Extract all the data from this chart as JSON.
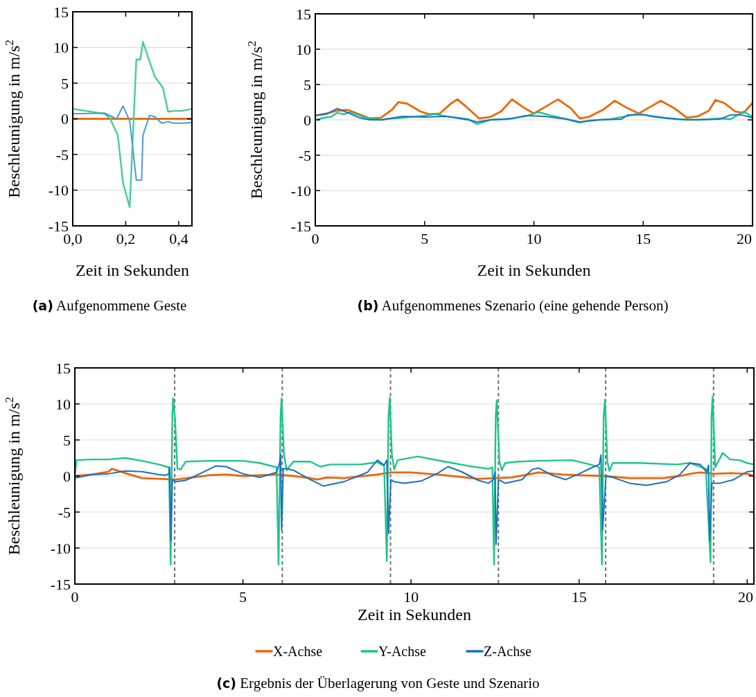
{
  "chart_data": [
    {
      "type": "line",
      "title": "(a) Aufgenommene Geste",
      "xlabel": "Zeit in Sekunden",
      "ylabel": "Beschleunigung in m/s$^{2}$",
      "xlim": [
        0,
        0.45
      ],
      "xticks": [
        {
          "value": 0,
          "label": "0,0"
        },
        {
          "value": 0.2,
          "label": "0,2"
        },
        {
          "value": 0.4,
          "label": "0,4"
        }
      ],
      "ylim": [
        -15,
        15
      ],
      "yticks": [
        -15,
        -10,
        -5,
        0,
        5,
        10,
        15
      ],
      "grid": "y",
      "legend": false,
      "line_style": "solid",
      "marker": "none",
      "series": [
        {
          "color": "#e8700a",
          "x": [
            0,
            0.45
          ],
          "values": [
            0,
            0
          ]
        },
        {
          "color": "#45cc9c",
          "x": [
            0,
            0.12,
            0.14,
            0.17,
            0.19,
            0.215,
            0.24,
            0.255,
            0.265,
            0.29,
            0.31,
            0.34,
            0.36,
            0.38,
            0.41,
            0.45
          ],
          "values": [
            1.4,
            0.7,
            0.1,
            -2.3,
            -9,
            -12.4,
            8.3,
            8.3,
            10.8,
            8,
            5.9,
            4.4,
            1,
            1.1,
            1.1,
            1.4
          ]
        },
        {
          "color": "#4b9ad2",
          "x": [
            0,
            0.12,
            0.165,
            0.19,
            0.215,
            0.24,
            0.26,
            0.265,
            0.29,
            0.31,
            0.335,
            0.36,
            0.38,
            0.42,
            0.45
          ],
          "values": [
            0.7,
            0.8,
            0,
            1.8,
            -0.3,
            -8.6,
            -8.6,
            -2.3,
            0.5,
            0.3,
            -0.6,
            -0.4,
            -0.6,
            -0.6,
            -0.5
          ]
        }
      ]
    },
    {
      "type": "line",
      "title": "(b) Aufgenommenes Szenario (eine gehende Person)",
      "xlabel": "Zeit in Sekunden",
      "ylabel": "Beschleunigung in m/s$^{2}$",
      "xlim": [
        0,
        20
      ],
      "xticks": [
        0,
        5,
        10,
        15,
        20
      ],
      "ylim": [
        -15,
        15
      ],
      "yticks": [
        -15,
        -10,
        -5,
        0,
        5,
        10,
        15
      ],
      "grid": "y",
      "legend": false,
      "line_style": "solid",
      "marker": "none",
      "series": [
        {
          "color": "#ec6608",
          "x": [
            0,
            0.5,
            1,
            1.5,
            2,
            2.5,
            3,
            3.5,
            3.8,
            4.2,
            4.8,
            5.2,
            5.7,
            6.2,
            6.5,
            7,
            7.5,
            8,
            8.5,
            9,
            9.5,
            10,
            10.5,
            11.1,
            11.7,
            12.1,
            12.5,
            13.2,
            13.7,
            14.2,
            14.8,
            15.3,
            15.8,
            16.4,
            17,
            17.5,
            18,
            18.3,
            18.7,
            19.2,
            19.6,
            20
          ],
          "values": [
            0.6,
            0.9,
            1.3,
            1.4,
            0.8,
            0.2,
            0.3,
            1.4,
            2.5,
            2.3,
            1.2,
            0.8,
            0.9,
            2.3,
            2.9,
            1.6,
            0.2,
            0.4,
            1.2,
            2.9,
            1.8,
            0.9,
            1.8,
            2.9,
            1.6,
            0.2,
            0.4,
            1.5,
            2.7,
            1.8,
            0.9,
            1.8,
            2.7,
            1.7,
            0.3,
            0.5,
            1.3,
            2.8,
            2.4,
            1.2,
            1,
            2.4
          ]
        },
        {
          "color": "#1dc48c",
          "x": [
            0,
            0.4,
            0.7,
            1,
            1.3,
            1.6,
            2.2,
            3,
            3.5,
            4,
            5,
            5.5,
            6,
            7,
            7.4,
            8,
            8.8,
            9.6,
            10.2,
            10.8,
            11.5,
            12.1,
            12.5,
            13.5,
            14.2,
            14.8,
            15.5,
            16.5,
            17.5,
            18.5,
            19,
            19.6,
            20
          ],
          "values": [
            0,
            0.3,
            0.4,
            1,
            0.8,
            1.1,
            0.4,
            0,
            0.2,
            0.3,
            0.6,
            0.8,
            0.5,
            0.1,
            -0.6,
            0,
            0.1,
            0.5,
            1.1,
            0.6,
            0.1,
            -0.4,
            -0.1,
            0.1,
            0.5,
            0.9,
            0.4,
            0.1,
            0,
            0.2,
            0.1,
            1.2,
            0.4
          ]
        },
        {
          "color": "#1a73c8",
          "x": [
            0,
            0.5,
            1,
            1.5,
            2,
            2.5,
            3,
            4,
            5,
            6,
            7,
            7.4,
            8,
            9,
            9.6,
            10.5,
            11.5,
            12.1,
            13,
            14,
            14.3,
            15,
            16,
            17,
            18.5,
            19,
            19.5,
            20
          ],
          "values": [
            0.6,
            0.8,
            1.6,
            1,
            0.3,
            0,
            0,
            0.5,
            0.4,
            0.5,
            0,
            -0.3,
            0,
            0.2,
            0.6,
            0.5,
            0.1,
            -0.3,
            0,
            0.1,
            0.7,
            0.7,
            0.3,
            0,
            0.1,
            0.7,
            0.7,
            0.3
          ]
        }
      ]
    },
    {
      "type": "line",
      "title": "(c) Ergebnis der Überlagerung von Geste und Szenario",
      "xlabel": "Zeit in Sekunden",
      "ylabel": "Beschleunigung in m/s$^{2}$",
      "xlim": [
        0,
        20.2
      ],
      "xticks": [
        0,
        5,
        10,
        15,
        20
      ],
      "ylim": [
        -15,
        15
      ],
      "yticks": [
        -15,
        -10,
        -5,
        0,
        5,
        10,
        15
      ],
      "grid": "y",
      "legend": "bottom",
      "line_style": "solid",
      "marker": "none",
      "ref_lines": [
        {
          "axis": "x",
          "value": 2.97,
          "color": "#707070",
          "line_style": "dashed"
        },
        {
          "axis": "x",
          "value": 6.17,
          "color": "#707070",
          "line_style": "dashed"
        },
        {
          "axis": "x",
          "value": 9.39,
          "color": "#707070",
          "line_style": "dashed"
        },
        {
          "axis": "x",
          "value": 12.6,
          "color": "#707070",
          "line_style": "dashed"
        },
        {
          "axis": "x",
          "value": 15.79,
          "color": "#707070",
          "line_style": "dashed"
        },
        {
          "axis": "x",
          "value": 19,
          "color": "#707070",
          "line_style": "dashed"
        }
      ],
      "series": [
        {
          "name": "X-Achse",
          "color": "#ec6608",
          "x": [
            0,
            0.5,
            1,
            1.1,
            1.5,
            2,
            2.5,
            3,
            3.5,
            4,
            4.5,
            5,
            6,
            6.5,
            7,
            7.2,
            7.5,
            8,
            9,
            9.4,
            10,
            11,
            12,
            12.5,
            13,
            13.8,
            14.5,
            15,
            15.7,
            16.5,
            17.5,
            18,
            18.3,
            18.6,
            19,
            19.5,
            20,
            20.2
          ],
          "values": [
            0,
            0.2,
            0.6,
            1,
            0.4,
            -0.3,
            -0.4,
            -0.5,
            -0.2,
            0.1,
            0.2,
            0,
            0.2,
            0,
            -0.3,
            -0.5,
            -0.2,
            -0.3,
            0.2,
            0.5,
            0.5,
            0.1,
            -0.4,
            -0.3,
            -0.2,
            0.5,
            0.2,
            0.1,
            0,
            -0.3,
            -0.3,
            0,
            0.3,
            0.5,
            0.3,
            0.4,
            0.3,
            0
          ]
        },
        {
          "name": "Y-Achse",
          "color": "#1dc48c",
          "x": [
            0,
            0.05,
            0.5,
            1,
            1.5,
            2,
            2.5,
            2.8,
            2.85,
            2.9,
            2.92,
            2.98,
            3.05,
            3.15,
            3.3,
            4,
            5,
            5.5,
            6,
            6.06,
            6.12,
            6.15,
            6.22,
            6.3,
            6.5,
            7,
            7.3,
            7.6,
            8.5,
            9,
            9.2,
            9.28,
            9.33,
            9.37,
            9.43,
            9.5,
            9.6,
            10.2,
            11,
            11.7,
            12.3,
            12.42,
            12.47,
            12.52,
            12.55,
            12.63,
            12.7,
            12.8,
            13.2,
            13.8,
            14.8,
            15.4,
            15.6,
            15.68,
            15.73,
            15.77,
            15.84,
            15.9,
            16,
            16.8,
            17.9,
            18.3,
            18.77,
            18.91,
            18.94,
            18.97,
            19.05,
            19.27,
            19.49,
            19.78,
            19.99,
            20.2
          ],
          "values": [
            0,
            2.2,
            2.3,
            2.3,
            2.5,
            2.1,
            1.6,
            1.2,
            -12.3,
            8.3,
            10.8,
            8,
            1,
            0.9,
            2,
            2.1,
            2.1,
            1.8,
            1.2,
            -12.3,
            8.3,
            10.8,
            3,
            0.8,
            2,
            2,
            1.3,
            1.6,
            1.6,
            1.9,
            1.4,
            -11.8,
            8.3,
            10.9,
            3,
            0.9,
            2.2,
            2.7,
            2,
            1.4,
            1,
            1.2,
            -12.3,
            8.3,
            10.5,
            2,
            0.8,
            1.8,
            2,
            2.1,
            2.2,
            1.5,
            1.2,
            -12.3,
            8.3,
            10.6,
            2,
            0.7,
            1.8,
            1.8,
            1.6,
            1.8,
            1,
            -12,
            8.3,
            11,
            1.2,
            3.2,
            2.3,
            2.2,
            1.8,
            1.6
          ]
        },
        {
          "name": "Z-Achse",
          "color": "#1a6fc0",
          "x": [
            0,
            0.5,
            1,
            1.5,
            2,
            2.5,
            2.7,
            2.8,
            2.82,
            2.86,
            2.9,
            3,
            3.3,
            3.8,
            4.2,
            4.5,
            5,
            5.5,
            6,
            6.1,
            6.12,
            6.15,
            6.2,
            6.3,
            6.5,
            7,
            7.4,
            8,
            8.7,
            9,
            9.2,
            9.28,
            9.33,
            9.4,
            9.5,
            9.8,
            10.3,
            10.8,
            11.1,
            11.5,
            12,
            12.3,
            12.45,
            12.5,
            12.53,
            12.6,
            12.8,
            13.3,
            13.6,
            13.8,
            14.2,
            14.6,
            15,
            15.4,
            15.6,
            15.65,
            15.7,
            15.8,
            16,
            16.5,
            17,
            17.6,
            18,
            18.3,
            18.6,
            18.8,
            18.85,
            18.88,
            18.95,
            19.2,
            19.6,
            20,
            20.2
          ],
          "values": [
            -0.3,
            0.2,
            0.3,
            0.7,
            0.6,
            0.2,
            0.1,
            0.3,
            1.2,
            -9,
            -0.5,
            -0.8,
            -0.6,
            0.5,
            1.4,
            1.3,
            0.3,
            -0.2,
            0.5,
            2,
            3,
            -7.5,
            1,
            1,
            0.8,
            -0.5,
            -1.4,
            -0.8,
            0.5,
            2.2,
            1.5,
            2.2,
            -8,
            -0.5,
            -0.8,
            -1,
            -0.7,
            0.4,
            1.3,
            0.6,
            -0.6,
            -1,
            -0.5,
            0.5,
            -9.5,
            -0.5,
            -1,
            -0.5,
            0.9,
            1.1,
            0.1,
            -0.5,
            0.3,
            1.2,
            1.6,
            2.9,
            -7.5,
            0,
            -0.2,
            -1,
            -1.3,
            -0.8,
            0.2,
            1.8,
            1.6,
            0.5,
            1.5,
            -9,
            -1,
            -1,
            -0.5,
            0.6,
            0.7
          ]
        }
      ]
    }
  ]
}
